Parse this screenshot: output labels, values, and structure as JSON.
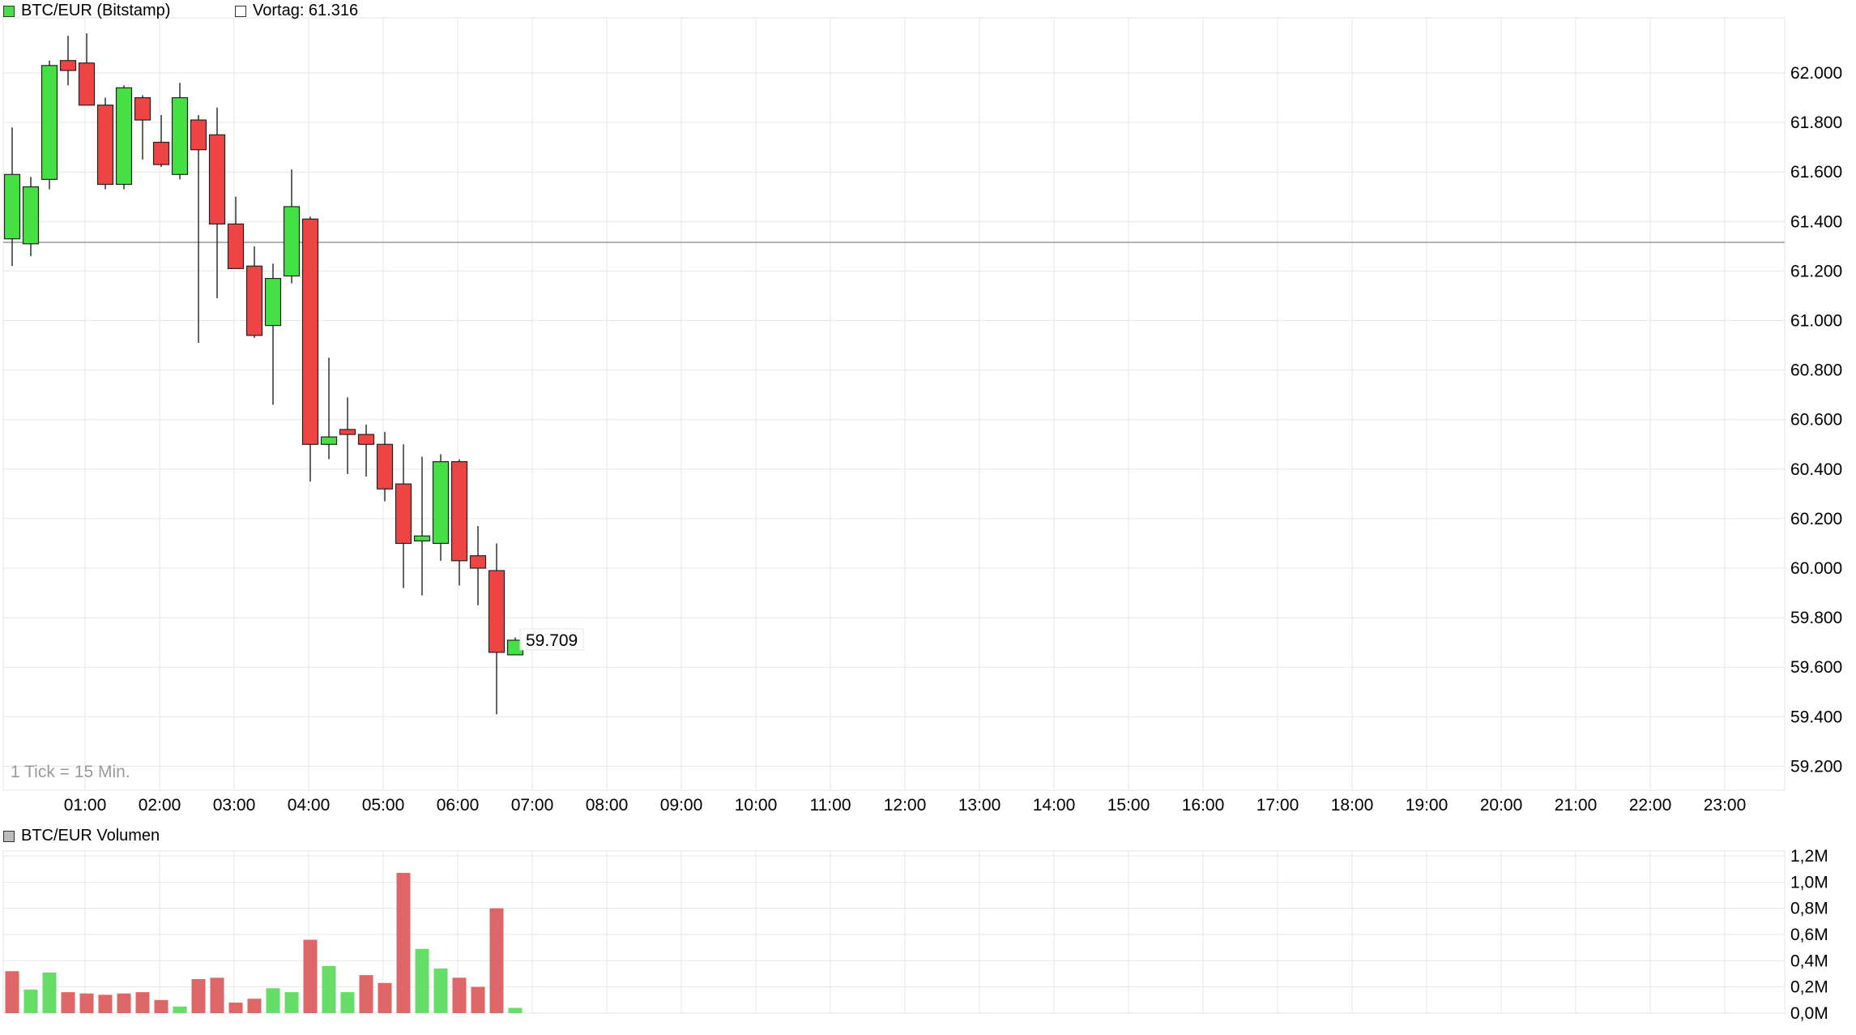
{
  "chart_data": [
    {
      "type": "candlestick",
      "title": "BTC/EUR (Bitstamp)",
      "legend": {
        "symbol": "BTC/EUR (Bitstamp)",
        "prev_close_label": "Vortag: 61.316"
      },
      "prev_close": 61316,
      "tick_note": "1 Tick = 15 Min.",
      "last_price_label": "59.709",
      "x_ticks": [
        "01:00",
        "02:00",
        "03:00",
        "04:00",
        "05:00",
        "06:00",
        "07:00",
        "08:00",
        "09:00",
        "10:00",
        "11:00",
        "12:00",
        "13:00",
        "14:00",
        "15:00",
        "16:00",
        "17:00",
        "18:00",
        "19:00",
        "20:00",
        "21:00",
        "22:00",
        "23:00"
      ],
      "y_ticks": [
        "62.000",
        "61.800",
        "61.600",
        "61.400",
        "61.200",
        "61.000",
        "60.800",
        "60.600",
        "60.400",
        "60.200",
        "60.000",
        "59.800",
        "59.600",
        "59.400",
        "59.200"
      ],
      "ylim": [
        59150,
        62250
      ],
      "grid": true,
      "colors": {
        "up": "#44e044",
        "down": "#ee4444",
        "grid": "#e6e6e6",
        "prev_close": "#999999"
      },
      "candles": [
        {
          "time": "00:00",
          "open": 61330,
          "high": 61780,
          "low": 61220,
          "close": 61590
        },
        {
          "time": "00:15",
          "open": 61310,
          "high": 61580,
          "low": 61260,
          "close": 61540
        },
        {
          "time": "00:30",
          "open": 61570,
          "high": 62050,
          "low": 61530,
          "close": 62030
        },
        {
          "time": "00:45",
          "open": 62050,
          "high": 62150,
          "low": 61950,
          "close": 62010
        },
        {
          "time": "01:00",
          "open": 62040,
          "high": 62160,
          "low": 61880,
          "close": 61870
        },
        {
          "time": "01:15",
          "open": 61870,
          "high": 61900,
          "low": 61530,
          "close": 61550
        },
        {
          "time": "01:30",
          "open": 61550,
          "high": 61950,
          "low": 61530,
          "close": 61940
        },
        {
          "time": "01:45",
          "open": 61900,
          "high": 61910,
          "low": 61650,
          "close": 61810
        },
        {
          "time": "02:00",
          "open": 61720,
          "high": 61830,
          "low": 61620,
          "close": 61630
        },
        {
          "time": "02:15",
          "open": 61590,
          "high": 61960,
          "low": 61570,
          "close": 61900
        },
        {
          "time": "02:30",
          "open": 61810,
          "high": 61830,
          "low": 60910,
          "close": 61690
        },
        {
          "time": "02:45",
          "open": 61750,
          "high": 61860,
          "low": 61090,
          "close": 61390
        },
        {
          "time": "03:00",
          "open": 61390,
          "high": 61500,
          "low": 61210,
          "close": 61210
        },
        {
          "time": "03:15",
          "open": 61220,
          "high": 61300,
          "low": 60930,
          "close": 60940
        },
        {
          "time": "03:30",
          "open": 60980,
          "high": 61230,
          "low": 60660,
          "close": 61170
        },
        {
          "time": "03:45",
          "open": 61180,
          "high": 61610,
          "low": 61150,
          "close": 61460
        },
        {
          "time": "04:00",
          "open": 61410,
          "high": 61420,
          "low": 60350,
          "close": 60500
        },
        {
          "time": "04:15",
          "open": 60500,
          "high": 60850,
          "low": 60440,
          "close": 60530
        },
        {
          "time": "04:30",
          "open": 60560,
          "high": 60690,
          "low": 60380,
          "close": 60540
        },
        {
          "time": "04:45",
          "open": 60540,
          "high": 60580,
          "low": 60370,
          "close": 60500
        },
        {
          "time": "05:00",
          "open": 60500,
          "high": 60550,
          "low": 60270,
          "close": 60320
        },
        {
          "time": "05:15",
          "open": 60340,
          "high": 60500,
          "low": 59920,
          "close": 60100
        },
        {
          "time": "05:30",
          "open": 60110,
          "high": 60450,
          "low": 59890,
          "close": 60130
        },
        {
          "time": "05:45",
          "open": 60100,
          "high": 60460,
          "low": 60030,
          "close": 60430
        },
        {
          "time": "06:00",
          "open": 60430,
          "high": 60440,
          "low": 59930,
          "close": 60030
        },
        {
          "time": "06:15",
          "open": 60050,
          "high": 60170,
          "low": 59850,
          "close": 60000
        },
        {
          "time": "06:30",
          "open": 59990,
          "high": 60100,
          "low": 59410,
          "close": 59660
        },
        {
          "time": "06:45",
          "open": 59650,
          "high": 59720,
          "low": 59650,
          "close": 59709
        }
      ]
    },
    {
      "type": "bar",
      "title": "BTC/EUR Volumen",
      "legend_label": "BTC/EUR Volumen",
      "y_ticks": [
        "1,2M",
        "1,0M",
        "0,8M",
        "0,6M",
        "0,4M",
        "0,2M",
        "0,0M"
      ],
      "ylim": [
        0,
        1.2
      ],
      "unit": "M",
      "values": [
        0.32,
        0.18,
        0.31,
        0.16,
        0.15,
        0.14,
        0.15,
        0.16,
        0.1,
        0.05,
        0.26,
        0.27,
        0.08,
        0.11,
        0.19,
        0.16,
        0.56,
        0.36,
        0.16,
        0.29,
        0.23,
        1.07,
        0.49,
        0.34,
        0.27,
        0.2,
        0.8,
        0.04
      ],
      "directions": [
        "down",
        "up",
        "up",
        "down",
        "down",
        "down",
        "down",
        "down",
        "down",
        "up",
        "down",
        "down",
        "down",
        "down",
        "up",
        "up",
        "down",
        "up",
        "up",
        "down",
        "down",
        "down",
        "up",
        "up",
        "down",
        "down",
        "down",
        "up"
      ],
      "colors": {
        "up": "#66dd66",
        "down": "#dd6666"
      }
    }
  ]
}
